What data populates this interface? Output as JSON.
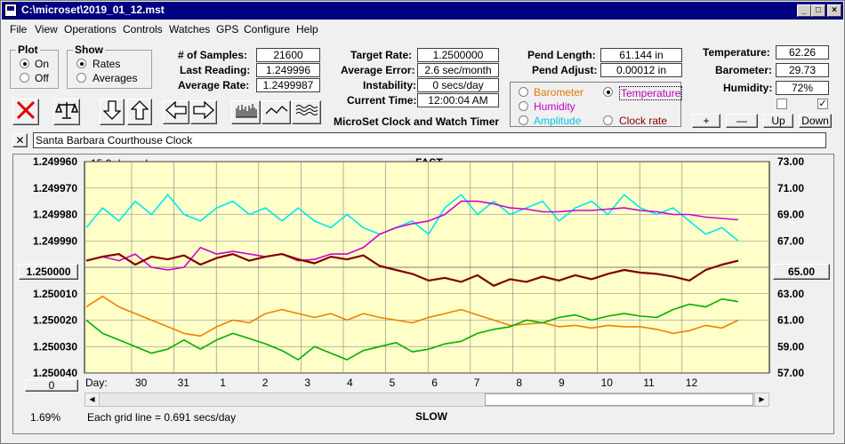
{
  "window": {
    "title": "C:\\microset\\2019_01_12.mst"
  },
  "menu": [
    "File",
    "View",
    "Operations",
    "Controls",
    "Watches",
    "GPS",
    "Configure",
    "Help"
  ],
  "plot_group": {
    "title": "Plot",
    "on": "On",
    "off": "Off",
    "selected": "On"
  },
  "show_group": {
    "title": "Show",
    "rates": "Rates",
    "averages": "Averages",
    "selected": "Rates"
  },
  "stats": {
    "samples_label": "# of Samples:",
    "samples": "21600",
    "last_reading_label": "Last Reading:",
    "last_reading": "1.249996",
    "avg_rate_label": "Average Rate:",
    "avg_rate": "1.2499987",
    "target_rate_label": "Target Rate:",
    "target_rate": "1.2500000",
    "avg_error_label": "Average Error:",
    "avg_error": "2.6 sec/month",
    "instability_label": "Instability:",
    "instability": "0 secs/day",
    "current_time_label": "Current Time:",
    "current_time": "12:00:04 AM",
    "pend_length_label": "Pend Length:",
    "pend_length": "61.144 in",
    "pend_adjust_label": "Pend Adjust:",
    "pend_adjust": "0.00012 in",
    "temperature_label": "Temperature:",
    "temperature": "62.26",
    "barometer_label": "Barometer:",
    "barometer": "29.73",
    "humidity_label": "Humidity:",
    "humidity": "72%"
  },
  "app_caption": "MicroSet Clock and Watch Timer",
  "overlay_options": [
    {
      "label": "Barometer",
      "color": "#e07800",
      "selected": false
    },
    {
      "label": "Temperature",
      "color": "#c000c0",
      "selected": true
    },
    {
      "label": "Humidity",
      "color": "#c000c0",
      "selected": false
    },
    {
      "label": "Amplitude",
      "color": "#00c8e0",
      "selected": false
    },
    {
      "label": "Clock rate",
      "color": "#800000",
      "selected": false
    }
  ],
  "right_buttons": {
    "plus": "+",
    "minus": "—",
    "up": "Up",
    "down": "Down"
  },
  "clock_name": "Santa Barbara Courthouse Clock",
  "chart": {
    "days_shown": "15.0 days shown",
    "top_label": "FAST",
    "bottom_label": "SLOW",
    "grid_note": "Each grid line = 0.691 secs/day",
    "day_label": "Day:",
    "left_center_button": "1.250000",
    "right_center_button": "65.00",
    "bottom_left_button": "0",
    "percent": "1.69%"
  },
  "chart_data": {
    "type": "line",
    "x_ticks": [
      "30",
      "31",
      "1",
      "2",
      "3",
      "4",
      "5",
      "6",
      "7",
      "8",
      "9",
      "10",
      "11",
      "12"
    ],
    "y_left_ticks": [
      "1.249960",
      "1.249970",
      "1.249980",
      "1.249990",
      "1.250000",
      "1.250010",
      "1.250020",
      "1.250030",
      "1.250040"
    ],
    "y_right_ticks": [
      "73.00",
      "71.00",
      "69.00",
      "67.00",
      "65.00",
      "63.00",
      "61.00",
      "59.00",
      "57.00"
    ],
    "ylim_left": [
      1.25004,
      1.24996
    ],
    "ylim_right": [
      57,
      73
    ],
    "grid": true,
    "series": [
      {
        "color": "#00e8f0",
        "values": [
          68.0,
          69.5,
          68.5,
          70.0,
          69.0,
          70.5,
          69.0,
          68.5,
          69.5,
          70.0,
          69.0,
          69.5,
          68.5,
          69.5,
          68.5,
          68.0,
          69.0,
          68.0,
          67.5,
          68.0,
          68.5,
          67.5,
          69.5,
          70.5,
          69.0,
          70.0,
          69.0,
          69.5,
          70.0,
          68.5,
          69.5,
          70.0,
          69.0,
          70.5,
          69.5,
          69.0,
          69.5,
          68.5,
          67.5,
          68.0,
          67.0
        ]
      },
      {
        "color": "#d000d0",
        "values": [
          65.5,
          65.8,
          65.5,
          66.0,
          65.0,
          64.8,
          65.0,
          66.5,
          66.0,
          66.2,
          66.0,
          65.8,
          66.0,
          65.5,
          65.6,
          66.0,
          66.0,
          66.5,
          67.5,
          68.0,
          68.3,
          68.5,
          69.0,
          70.0,
          70.0,
          69.8,
          69.5,
          69.4,
          69.2,
          69.2,
          69.3,
          69.3,
          69.4,
          69.5,
          69.3,
          69.2,
          69.0,
          69.0,
          68.8,
          68.7,
          68.6
        ]
      },
      {
        "color": "#800000",
        "values": [
          65.5,
          65.8,
          66.0,
          65.2,
          65.8,
          65.6,
          65.9,
          65.2,
          65.7,
          66.0,
          65.5,
          65.8,
          66.0,
          65.6,
          65.3,
          65.8,
          65.6,
          65.9,
          65.1,
          64.8,
          64.5,
          64.0,
          64.2,
          63.9,
          64.4,
          63.6,
          64.1,
          63.9,
          64.3,
          64.0,
          64.4,
          64.1,
          64.5,
          64.8,
          64.6,
          64.5,
          64.3,
          64.0,
          64.8,
          65.2,
          65.5
        ]
      },
      {
        "color": "#f08000",
        "values": [
          62.0,
          62.8,
          62.0,
          61.5,
          61.0,
          60.5,
          60.0,
          59.8,
          60.5,
          61.0,
          60.8,
          61.5,
          61.8,
          61.5,
          61.2,
          61.5,
          61.0,
          61.5,
          61.2,
          61.0,
          60.8,
          61.2,
          61.5,
          61.8,
          61.4,
          61.0,
          60.6,
          60.7,
          60.8,
          60.5,
          60.6,
          60.4,
          60.6,
          60.5,
          60.5,
          60.3,
          60.0,
          60.2,
          60.6,
          60.4,
          61.0
        ]
      },
      {
        "color": "#00b000",
        "values": [
          61.0,
          60.0,
          59.5,
          59.0,
          58.5,
          58.8,
          59.5,
          58.8,
          59.5,
          60.0,
          59.6,
          59.2,
          58.7,
          58.0,
          59.0,
          58.5,
          58.0,
          58.7,
          59.0,
          59.3,
          58.6,
          58.8,
          59.2,
          59.4,
          60.0,
          60.3,
          60.5,
          61.0,
          60.8,
          61.2,
          61.4,
          61.0,
          61.3,
          61.5,
          61.3,
          61.2,
          61.8,
          62.2,
          62.0,
          62.6,
          62.4
        ]
      }
    ]
  }
}
